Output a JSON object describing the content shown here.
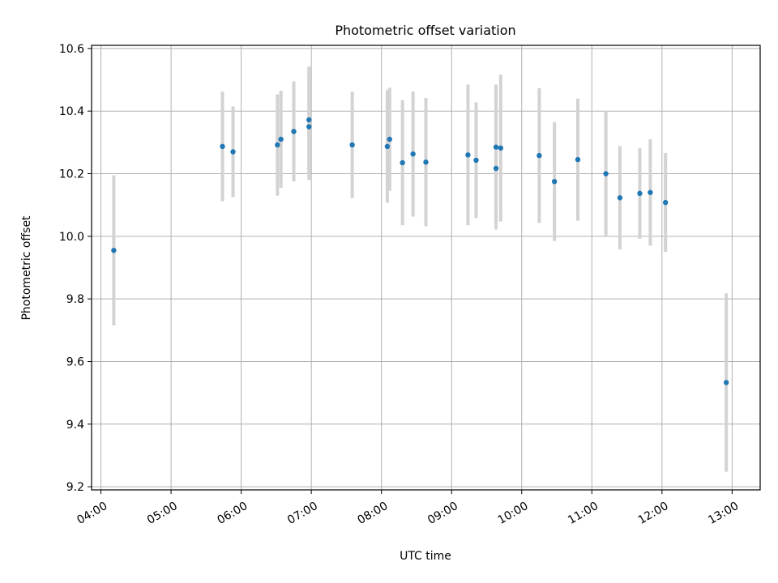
{
  "chart_data": {
    "type": "scatter",
    "title": "Photometric offset variation",
    "xlabel": "UTC time",
    "ylabel": "Photometric offset",
    "x_unit": "UTC time (HH:MM)",
    "xlim": [
      "03:52",
      "13:24"
    ],
    "ylim": [
      9.19,
      10.61
    ],
    "xticks": [
      "04:00",
      "05:00",
      "06:00",
      "07:00",
      "08:00",
      "09:00",
      "10:00",
      "11:00",
      "12:00",
      "13:00"
    ],
    "yticks": [
      9.2,
      9.4,
      9.6,
      9.8,
      10.0,
      10.2,
      10.4,
      10.6
    ],
    "grid": true,
    "errorbar_color": "#d3d3d3",
    "point_color": "#1f77b4",
    "points": [
      {
        "x": "04:11",
        "y": 9.955,
        "err": 0.24
      },
      {
        "x": "05:44",
        "y": 10.287,
        "err": 0.175
      },
      {
        "x": "05:53",
        "y": 10.27,
        "err": 0.145
      },
      {
        "x": "06:31",
        "y": 10.292,
        "err": 0.162
      },
      {
        "x": "06:34",
        "y": 10.31,
        "err": 0.155
      },
      {
        "x": "06:45",
        "y": 10.335,
        "err": 0.16
      },
      {
        "x": "06:58",
        "y": 10.372,
        "err": 0.17
      },
      {
        "x": "06:58",
        "y": 10.35,
        "err": 0.17
      },
      {
        "x": "07:35",
        "y": 10.292,
        "err": 0.17
      },
      {
        "x": "08:05",
        "y": 10.287,
        "err": 0.18
      },
      {
        "x": "08:07",
        "y": 10.31,
        "err": 0.165
      },
      {
        "x": "08:18",
        "y": 10.235,
        "err": 0.2
      },
      {
        "x": "08:27",
        "y": 10.263,
        "err": 0.2
      },
      {
        "x": "08:38",
        "y": 10.237,
        "err": 0.205
      },
      {
        "x": "09:14",
        "y": 10.26,
        "err": 0.225
      },
      {
        "x": "09:21",
        "y": 10.243,
        "err": 0.185
      },
      {
        "x": "09:38",
        "y": 10.285,
        "err": 0.2
      },
      {
        "x": "09:38",
        "y": 10.217,
        "err": 0.195
      },
      {
        "x": "09:42",
        "y": 10.282,
        "err": 0.235
      },
      {
        "x": "10:15",
        "y": 10.258,
        "err": 0.215
      },
      {
        "x": "10:28",
        "y": 10.175,
        "err": 0.19
      },
      {
        "x": "10:48",
        "y": 10.245,
        "err": 0.195
      },
      {
        "x": "11:12",
        "y": 10.2,
        "err": 0.2
      },
      {
        "x": "11:24",
        "y": 10.123,
        "err": 0.165
      },
      {
        "x": "11:41",
        "y": 10.137,
        "err": 0.145
      },
      {
        "x": "11:50",
        "y": 10.14,
        "err": 0.17
      },
      {
        "x": "12:03",
        "y": 10.108,
        "err": 0.158
      },
      {
        "x": "12:55",
        "y": 9.533,
        "err": 0.285
      }
    ]
  }
}
